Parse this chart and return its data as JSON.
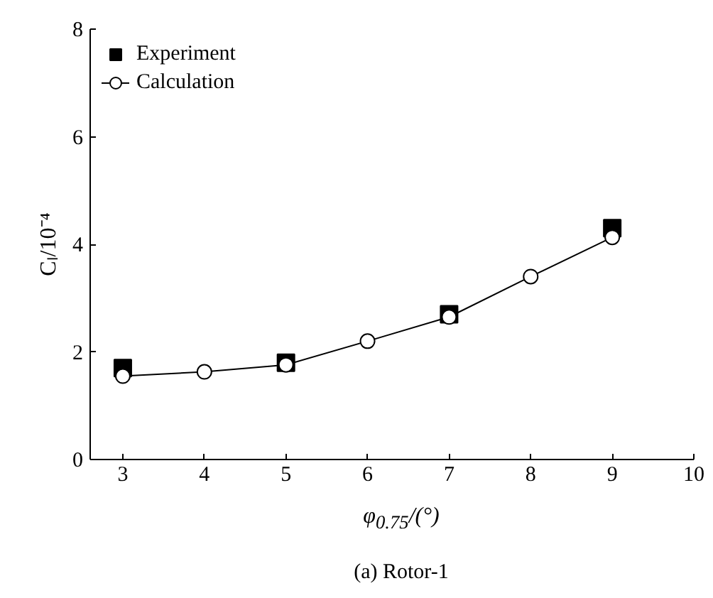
{
  "chart_data": {
    "type": "line",
    "xlabel": "φ$_{0.75}$/(°)",
    "ylabel": "Cₗ/10⁻⁴",
    "annotations": [
      "(a) Rotor-1"
    ],
    "xlim": [
      2.6,
      10
    ],
    "ylim": [
      0,
      8
    ],
    "xticks": [
      3,
      4,
      5,
      6,
      7,
      8,
      9,
      10
    ],
    "yticks": [
      0,
      2,
      4,
      6,
      8
    ],
    "grid": false,
    "legend": "top left",
    "series": [
      {
        "name": "Experiment",
        "type": "scatter",
        "marker": "square",
        "color": "#000000",
        "x": [
          3,
          5,
          7,
          9
        ],
        "values": [
          1.7,
          1.8,
          2.7,
          4.3
        ]
      },
      {
        "name": "Calculation",
        "type": "line",
        "marker": "circle",
        "color": "#000000",
        "x": [
          3,
          4,
          5,
          6,
          7,
          8,
          9
        ],
        "values": [
          1.55,
          1.63,
          1.76,
          2.2,
          2.65,
          3.4,
          4.13
        ]
      }
    ]
  }
}
